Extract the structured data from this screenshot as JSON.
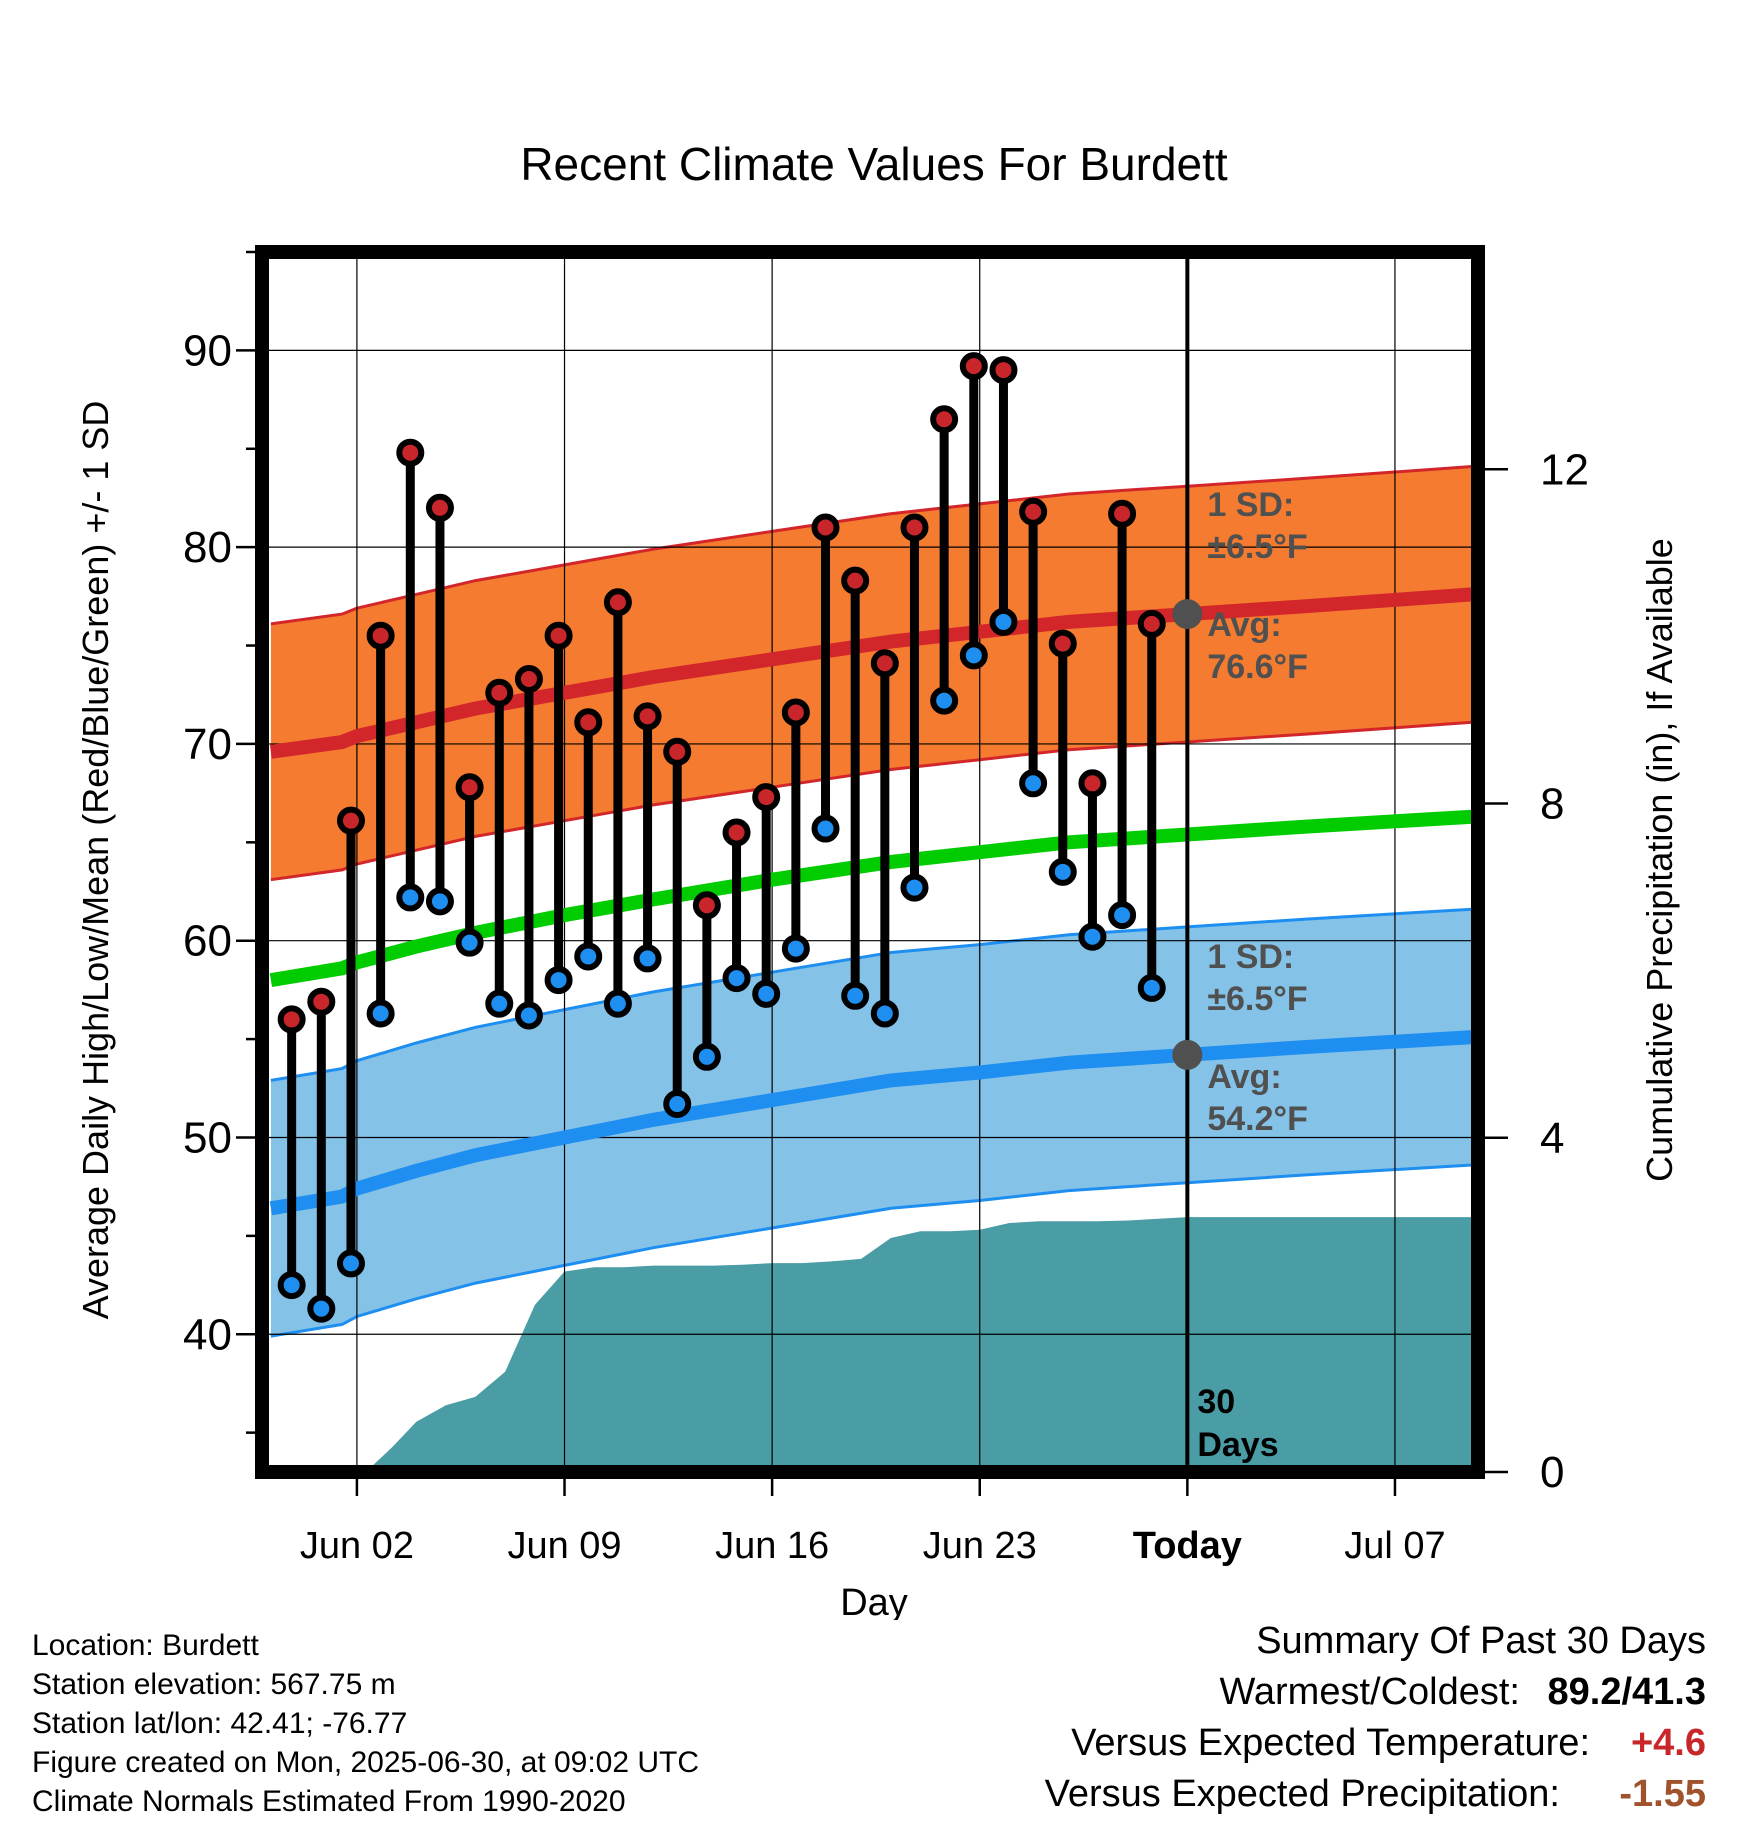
{
  "chart_data": {
    "type": "line",
    "title": "Recent Climate Values For Burdett",
    "xlabel": "Day",
    "ylabel": "Average Daily High/Low/Mean (Red/Blue/Green) +/- 1 SD",
    "y2label": "Cumulative Precipitation (in), If Available",
    "x_ticks": [
      "Jun 02",
      "Jun 09",
      "Jun 16",
      "Jun 23",
      "Today",
      "Jul 07"
    ],
    "x_tick_days": [
      2,
      9,
      16,
      23,
      30,
      37
    ],
    "xlim": [
      -1.2,
      39.8
    ],
    "ylim": [
      33,
      95
    ],
    "y_ticks": [
      40,
      50,
      60,
      70,
      80,
      90
    ],
    "y2lim": [
      0,
      14.6
    ],
    "y2_ticks": [
      0,
      4,
      8,
      12
    ],
    "grid": true,
    "today_day": 30,
    "today_label": "30\nDays",
    "days": [
      -0.9,
      1.5,
      2,
      4,
      6,
      9,
      12,
      16,
      20,
      23,
      26,
      30,
      34,
      39.6
    ],
    "normal_high": [
      69.6,
      70.1,
      70.4,
      71.1,
      71.8,
      72.6,
      73.4,
      74.3,
      75.2,
      75.7,
      76.2,
      76.6,
      77.0,
      77.6
    ],
    "normal_high_sd": 6.5,
    "normal_low": [
      46.4,
      47.0,
      47.4,
      48.3,
      49.1,
      50.0,
      50.9,
      51.9,
      52.9,
      53.3,
      53.8,
      54.2,
      54.6,
      55.1
    ],
    "normal_low_sd": 6.5,
    "normal_mean": [
      58.0,
      58.6,
      58.9,
      59.7,
      60.4,
      61.3,
      62.1,
      63.1,
      64.0,
      64.5,
      65.0,
      65.4,
      65.8,
      66.3
    ],
    "observed": {
      "days": [
        -0.2,
        0.8,
        1.8,
        2.8,
        3.8,
        4.8,
        5.8,
        6.8,
        7.8,
        8.8,
        9.8,
        10.8,
        11.8,
        12.8,
        13.8,
        14.8,
        15.8,
        16.8,
        17.8,
        18.8,
        19.8,
        20.8,
        21.8,
        22.8,
        23.8,
        24.8,
        25.8,
        26.8,
        27.8,
        28.8
      ],
      "highs": [
        56.0,
        56.9,
        66.1,
        75.5,
        84.8,
        82.0,
        67.8,
        72.6,
        73.3,
        75.5,
        71.1,
        77.2,
        71.4,
        69.6,
        61.8,
        65.5,
        67.3,
        71.6,
        81.0,
        78.3,
        74.1,
        81.0,
        86.5,
        89.2,
        89.0,
        81.8,
        75.1,
        68.0,
        81.7,
        76.1
      ],
      "lows": [
        42.5,
        41.3,
        43.6,
        56.3,
        62.2,
        62.0,
        59.9,
        56.8,
        56.2,
        58.0,
        59.2,
        56.8,
        59.1,
        51.7,
        54.1,
        58.1,
        57.3,
        59.6,
        65.7,
        57.2,
        56.3,
        62.7,
        72.2,
        74.5,
        76.2,
        68.0,
        63.5,
        60.2,
        61.3,
        57.6
      ]
    },
    "precip_cumulative": {
      "days": [
        2.3,
        3.2,
        4,
        5,
        6,
        7,
        8,
        9,
        10,
        11,
        12,
        13,
        14,
        15,
        16,
        17,
        18,
        19,
        20,
        21,
        22,
        23,
        24,
        25,
        26,
        27,
        28,
        30,
        39.6
      ],
      "values": [
        0.0,
        0.3,
        0.6,
        0.8,
        0.9,
        1.2,
        2.0,
        2.4,
        2.45,
        2.45,
        2.47,
        2.47,
        2.47,
        2.48,
        2.5,
        2.5,
        2.52,
        2.55,
        2.8,
        2.88,
        2.88,
        2.9,
        2.98,
        3.0,
        3.0,
        3.0,
        3.01,
        3.05,
        3.05
      ]
    },
    "annotations": {
      "high_sd_label": "1 SD:",
      "high_sd_value": "±6.5°F",
      "high_avg_label": "Avg:",
      "high_avg_value": "76.6°F",
      "low_sd_label": "1 SD:",
      "low_sd_value": "±6.5°F",
      "low_avg_label": "Avg:",
      "low_avg_value": "54.2°F"
    },
    "colors": {
      "high_band": "#f47b30",
      "high_line": "#d3262a",
      "high_point": "#c8262b",
      "low_band": "#85c2e8",
      "low_line": "#1e8ff0",
      "low_point": "#1e8ff0",
      "mean_line": "#00cc00",
      "precip": "#4a9ca5",
      "annotation": "#505050"
    }
  },
  "info": {
    "location": "Location: Burdett",
    "elevation": "Station elevation: 567.75 m",
    "latlon": "Station lat/lon: 42.41; -76.77",
    "created": "Figure created on Mon, 2025-06-30, at 09:02 UTC",
    "normals": "Climate Normals Estimated From 1990-2020"
  },
  "summary": {
    "title": "Summary Of Past 30 Days",
    "warm_cold_label": "Warmest/Coldest:",
    "warm_cold_value": "89.2/41.3",
    "temp_label": "Versus Expected Temperature:",
    "temp_value": "+4.6",
    "precip_label": "Versus Expected Precipitation:",
    "precip_value": "-1.55"
  }
}
